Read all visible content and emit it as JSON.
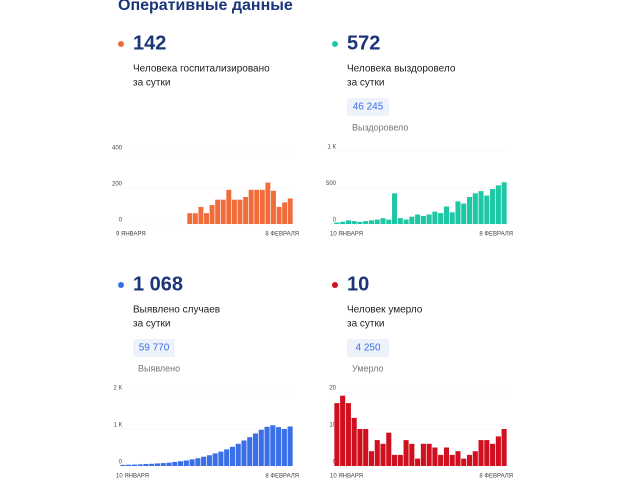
{
  "title": "Оперативные данные",
  "panels": [
    {
      "number": "142",
      "caption": [
        "Человека госпитализировано",
        "за сутки"
      ]
    },
    {
      "number": "572",
      "caption": [
        "Человека выздоровело",
        "за сутки"
      ],
      "total": "46 245",
      "total_label": "Выздоровело"
    },
    {
      "number": "1 068",
      "caption": [
        "Выявлено случаев",
        "за сутки"
      ],
      "total": "59 770",
      "total_label": "Выявлено"
    },
    {
      "number": "10",
      "caption": [
        "Человек умерло",
        "за сутки"
      ],
      "total": "4 250",
      "total_label": "Умерло"
    }
  ],
  "chart_data": [
    {
      "type": "bar",
      "color": "#f26b3a",
      "categories": [
        "9 ЯНВАРЯ",
        null,
        null,
        null,
        null,
        null,
        null,
        null,
        null,
        null,
        null,
        null,
        null,
        null,
        null,
        null,
        null,
        null,
        null,
        null,
        null,
        null,
        null,
        null,
        null,
        null,
        null,
        null,
        null,
        null,
        "8 ФЕВРАЛЯ"
      ],
      "values": [
        null,
        null,
        null,
        null,
        null,
        null,
        null,
        null,
        null,
        null,
        null,
        null,
        60,
        60,
        95,
        60,
        105,
        135,
        135,
        190,
        135,
        135,
        150,
        190,
        190,
        190,
        230,
        185,
        95,
        120,
        142
      ],
      "ylim": [
        0,
        400
      ],
      "yticks": [
        0,
        200,
        400
      ],
      "grid": true
    },
    {
      "type": "bar",
      "color": "#1ec8a5",
      "categories": [
        "10 ЯНВАРЯ",
        null,
        null,
        null,
        null,
        null,
        null,
        null,
        null,
        null,
        null,
        null,
        null,
        null,
        null,
        null,
        null,
        null,
        null,
        null,
        null,
        null,
        null,
        null,
        null,
        null,
        null,
        null,
        null,
        "8 ФЕВРАЛЯ"
      ],
      "values": [
        20,
        30,
        50,
        40,
        30,
        40,
        50,
        60,
        80,
        60,
        420,
        80,
        60,
        100,
        130,
        110,
        130,
        170,
        150,
        240,
        160,
        310,
        280,
        370,
        420,
        450,
        390,
        480,
        530,
        572
      ],
      "ylim": [
        0,
        1000
      ],
      "yticks": [
        0,
        500,
        {
          "value": 1000,
          "label": "1 К"
        }
      ],
      "grid": true
    },
    {
      "type": "bar",
      "color": "#3b6fe8",
      "categories": [
        "10 ЯНВАРЯ",
        null,
        null,
        null,
        null,
        null,
        null,
        null,
        null,
        null,
        null,
        null,
        null,
        null,
        null,
        null,
        null,
        null,
        null,
        null,
        null,
        null,
        null,
        null,
        null,
        null,
        null,
        null,
        null,
        "8 ФЕВРАЛЯ"
      ],
      "values": [
        30,
        35,
        40,
        45,
        55,
        60,
        70,
        80,
        90,
        110,
        130,
        150,
        180,
        210,
        250,
        290,
        340,
        390,
        450,
        520,
        600,
        690,
        780,
        880,
        980,
        1060,
        1100,
        1050,
        1000,
        1068
      ],
      "ylim": [
        0,
        2000
      ],
      "yticks": [
        0,
        {
          "value": 1000,
          "label": "1 К"
        },
        {
          "value": 2000,
          "label": "2 К"
        }
      ],
      "grid": true
    },
    {
      "type": "bar",
      "color": "#d0101e",
      "categories": [
        "10 ЯНВАРЯ",
        null,
        null,
        null,
        null,
        null,
        null,
        null,
        null,
        null,
        null,
        null,
        null,
        null,
        null,
        null,
        null,
        null,
        null,
        null,
        null,
        null,
        null,
        null,
        null,
        null,
        null,
        null,
        null,
        "8 ФЕВРАЛЯ"
      ],
      "values": [
        17,
        19,
        17,
        13,
        10,
        10,
        4,
        7,
        6,
        9,
        3,
        3,
        7,
        6,
        2,
        6,
        6,
        5,
        3,
        5,
        3,
        4,
        2,
        3,
        4,
        7,
        7,
        6,
        8,
        10
      ],
      "ylim": [
        0,
        20
      ],
      "yticks": [
        0,
        10,
        20
      ],
      "grid": true
    }
  ]
}
